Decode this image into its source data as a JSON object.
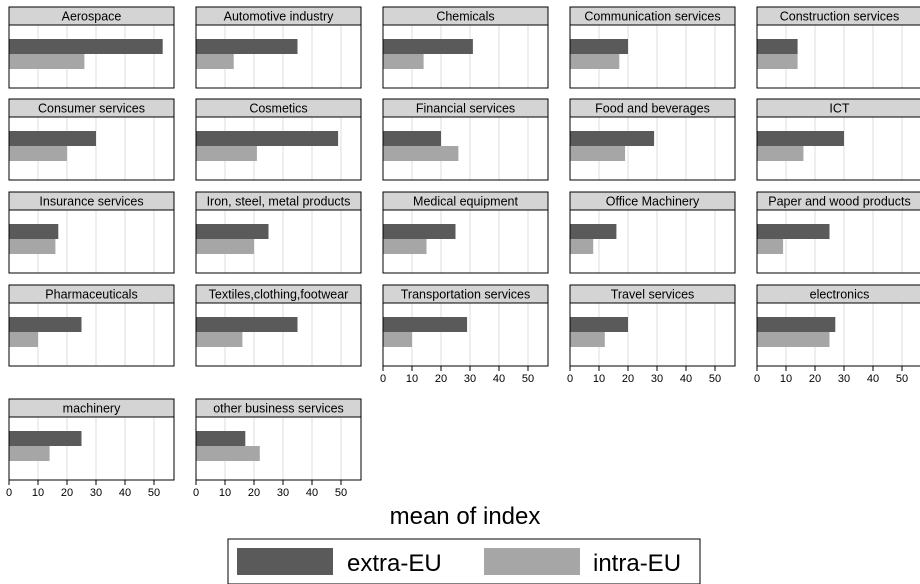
{
  "chart_data": {
    "type": "bar",
    "orientation": "horizontal",
    "xlabel": "mean of index",
    "xlim": [
      0,
      57
    ],
    "xticks": [
      0,
      10,
      20,
      30,
      40,
      50
    ],
    "grid": true,
    "legend_position": "bottom",
    "colors": {
      "extra-EU": "#5a5a5a",
      "intra-EU": "#a6a6a6",
      "panel_title_bg": "#d4d4d4",
      "grid": "#dcdcdc"
    },
    "series_names": [
      "extra-EU",
      "intra-EU"
    ],
    "panels": [
      {
        "title": "Aerospace",
        "extra_EU": 53,
        "intra_EU": 26,
        "x_axis": false
      },
      {
        "title": "Automotive industry",
        "extra_EU": 35,
        "intra_EU": 13,
        "x_axis": false
      },
      {
        "title": "Chemicals",
        "extra_EU": 31,
        "intra_EU": 14,
        "x_axis": false
      },
      {
        "title": "Communication services",
        "extra_EU": 20,
        "intra_EU": 17,
        "x_axis": false
      },
      {
        "title": "Construction services",
        "extra_EU": 14,
        "intra_EU": 14,
        "x_axis": false
      },
      {
        "title": "Consumer services",
        "extra_EU": 30,
        "intra_EU": 20,
        "x_axis": false
      },
      {
        "title": "Cosmetics",
        "extra_EU": 49,
        "intra_EU": 21,
        "x_axis": false
      },
      {
        "title": "Financial services",
        "extra_EU": 20,
        "intra_EU": 26,
        "x_axis": false
      },
      {
        "title": "Food and beverages",
        "extra_EU": 29,
        "intra_EU": 19,
        "x_axis": false
      },
      {
        "title": "ICT",
        "extra_EU": 30,
        "intra_EU": 16,
        "x_axis": false
      },
      {
        "title": "Insurance services",
        "extra_EU": 17,
        "intra_EU": 16,
        "x_axis": false
      },
      {
        "title": "Iron, steel, metal products",
        "extra_EU": 25,
        "intra_EU": 20,
        "x_axis": false
      },
      {
        "title": "Medical equipment",
        "extra_EU": 25,
        "intra_EU": 15,
        "x_axis": false
      },
      {
        "title": "Office Machinery",
        "extra_EU": 16,
        "intra_EU": 8,
        "x_axis": false
      },
      {
        "title": "Paper and wood products",
        "extra_EU": 25,
        "intra_EU": 9,
        "x_axis": false
      },
      {
        "title": "Pharmaceuticals",
        "extra_EU": 25,
        "intra_EU": 10,
        "x_axis": false
      },
      {
        "title": "Textiles,clothing,footwear",
        "extra_EU": 35,
        "intra_EU": 16,
        "x_axis": false
      },
      {
        "title": "Transportation services",
        "extra_EU": 29,
        "intra_EU": 10,
        "x_axis": true
      },
      {
        "title": "Travel services",
        "extra_EU": 20,
        "intra_EU": 12,
        "x_axis": true
      },
      {
        "title": "electronics",
        "extra_EU": 27,
        "intra_EU": 25,
        "x_axis": true
      },
      {
        "title": "machinery",
        "extra_EU": 25,
        "intra_EU": 14,
        "x_axis": true
      },
      {
        "title": "other business services",
        "extra_EU": 17,
        "intra_EU": 22,
        "x_axis": true
      }
    ]
  }
}
